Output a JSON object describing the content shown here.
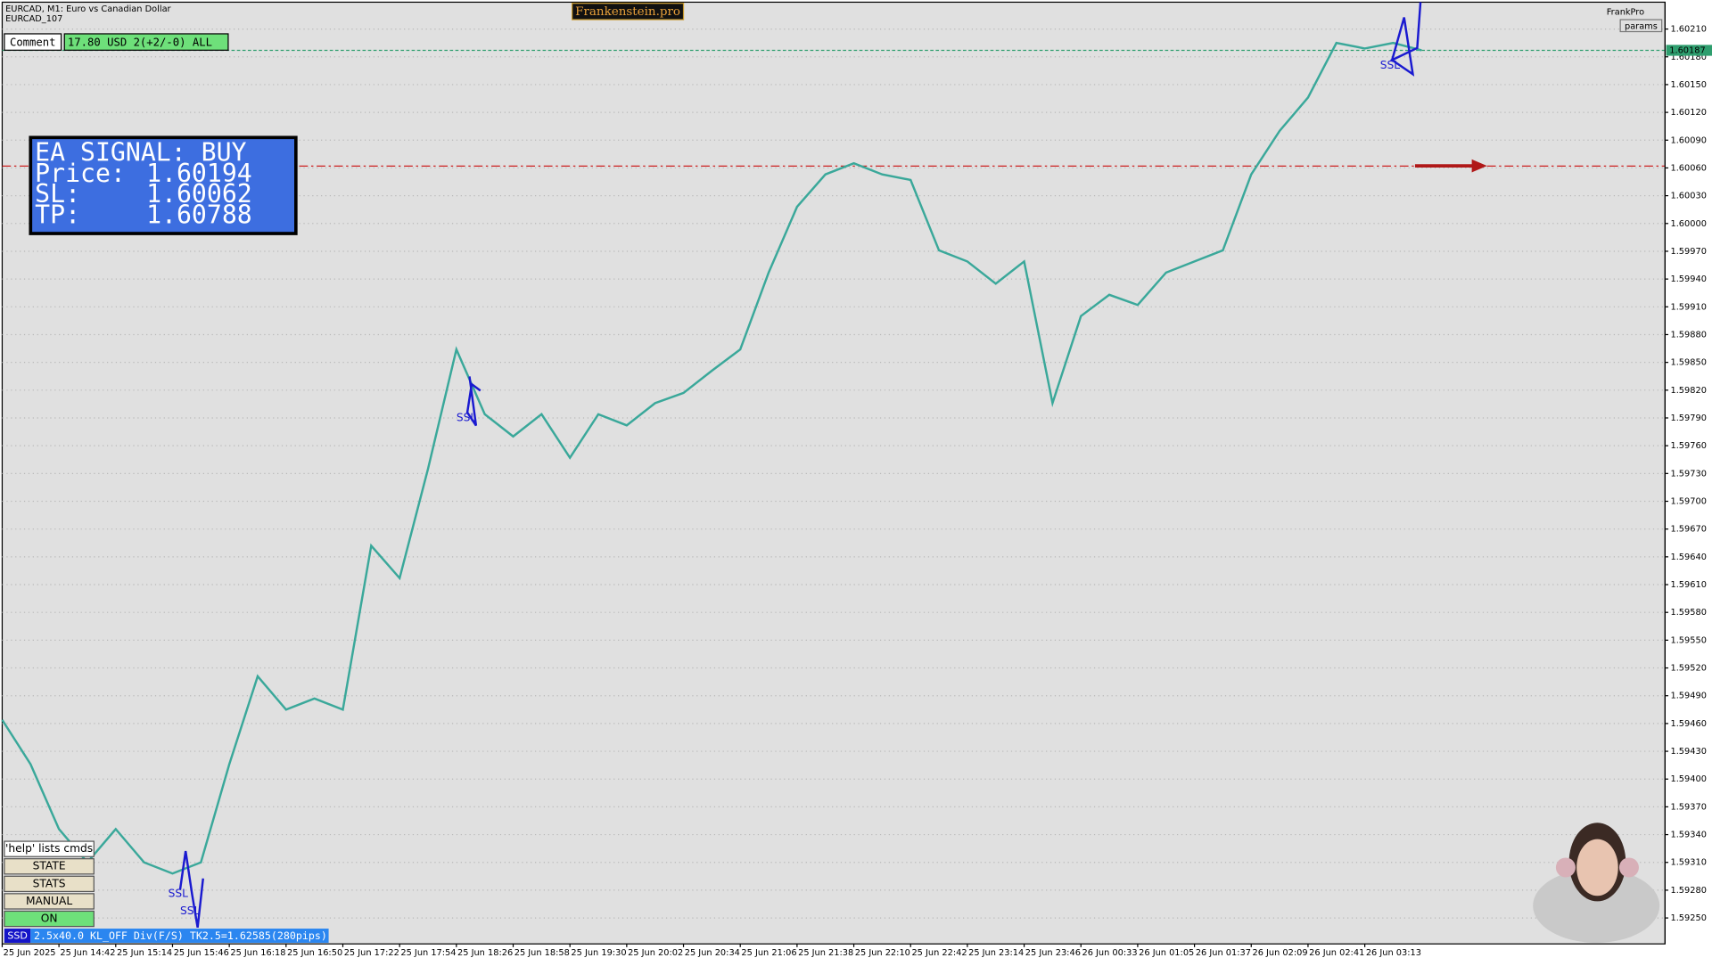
{
  "chart_data": {
    "type": "line",
    "title": "EURCAD, M1:  Euro vs Canadian Dollar",
    "subtitle": "EURCAD_107",
    "categories": [
      "25 Jun 2025",
      null,
      "25 Jun 14:42",
      null,
      "25 Jun 15:14",
      null,
      "25 Jun 15:46",
      null,
      "25 Jun 16:18",
      null,
      "25 Jun 16:50",
      null,
      "25 Jun 17:22",
      null,
      "25 Jun 17:54",
      null,
      "25 Jun 18:26",
      null,
      "25 Jun 18:58",
      null,
      "25 Jun 19:30",
      null,
      "25 Jun 20:02",
      null,
      "25 Jun 20:34",
      null,
      "25 Jun 21:06",
      null,
      "25 Jun 21:38",
      null,
      "25 Jun 22:10",
      null,
      "25 Jun 22:42",
      null,
      "25 Jun 23:14",
      null,
      "25 Jun 23:46",
      null,
      "26 Jun 00:33",
      null,
      "26 Jun 01:05",
      null,
      "26 Jun 01:37",
      null,
      "26 Jun 02:09",
      null,
      "26 Jun 02:41",
      null,
      "26 Jun 03:13",
      null,
      null
    ],
    "values": [
      1.59464,
      1.59416,
      1.59346,
      1.5931,
      1.59346,
      1.5931,
      1.59298,
      1.5931,
      1.59416,
      1.59511,
      1.59475,
      1.59487,
      1.59475,
      1.59652,
      1.59617,
      1.59735,
      1.59864,
      1.59794,
      1.5977,
      1.59794,
      1.59747,
      1.59794,
      1.59782,
      1.59806,
      1.59817,
      1.59841,
      1.59864,
      1.59947,
      1.60018,
      1.60053,
      1.60065,
      1.60053,
      1.60047,
      1.59971,
      1.59959,
      1.59935,
      1.59959,
      1.59806,
      1.599,
      1.59923,
      1.59912,
      1.59947,
      1.59959,
      1.59971,
      1.60053,
      1.601,
      1.60136,
      1.60195,
      1.60189,
      1.60195,
      1.60187
    ],
    "color": "#3aa89a",
    "ylim": [
      1.59222,
      1.60239
    ],
    "yticks": [
      {
        "value": 1.5925,
        "label": "1.59250"
      },
      {
        "value": 1.5928,
        "label": "1.59280"
      },
      {
        "value": 1.5931,
        "label": "1.59310"
      },
      {
        "value": 1.5934,
        "label": "1.59340"
      },
      {
        "value": 1.5937,
        "label": "1.59370"
      },
      {
        "value": 1.594,
        "label": "1.59400"
      },
      {
        "value": 1.5943,
        "label": "1.59430"
      },
      {
        "value": 1.5946,
        "label": "1.59460"
      },
      {
        "value": 1.5949,
        "label": "1.59490"
      },
      {
        "value": 1.5952,
        "label": "1.59520"
      },
      {
        "value": 1.5955,
        "label": "1.59550"
      },
      {
        "value": 1.5958,
        "label": "1.59580"
      },
      {
        "value": 1.5961,
        "label": "1.59610"
      },
      {
        "value": 1.5964,
        "label": "1.59640"
      },
      {
        "value": 1.5967,
        "label": "1.59670"
      },
      {
        "value": 1.597,
        "label": "1.59700"
      },
      {
        "value": 1.5973,
        "label": "1.59730"
      },
      {
        "value": 1.5976,
        "label": "1.59760"
      },
      {
        "value": 1.5979,
        "label": "1.59790"
      },
      {
        "value": 1.5982,
        "label": "1.59820"
      },
      {
        "value": 1.5985,
        "label": "1.59850"
      },
      {
        "value": 1.5988,
        "label": "1.59880"
      },
      {
        "value": 1.5991,
        "label": "1.59910"
      },
      {
        "value": 1.5994,
        "label": "1.59940"
      },
      {
        "value": 1.5997,
        "label": "1.59970"
      },
      {
        "value": 1.6,
        "label": "1.60000"
      },
      {
        "value": 1.6003,
        "label": "1.60030"
      },
      {
        "value": 1.6006,
        "label": "1.60060"
      },
      {
        "value": 1.6009,
        "label": "1.60090"
      },
      {
        "value": 1.6012,
        "label": "1.60120"
      },
      {
        "value": 1.6015,
        "label": "1.60150"
      },
      {
        "value": 1.6018,
        "label": "1.60180"
      },
      {
        "value": 1.6021,
        "label": "1.60210"
      }
    ],
    "grid": true,
    "price_lines": [
      {
        "value": 1.60187,
        "label": "1.60187",
        "color": "#2e9e6e"
      },
      {
        "value": 1.60062,
        "color": "#cc2222"
      }
    ]
  },
  "watermark": "Frankenstein.pro",
  "comment": {
    "label": "Comment",
    "text": "17.80 USD 2(+2/-0) ALL"
  },
  "ea_panel": {
    "title": "EA SIGNAL: BUY",
    "rows": [
      [
        "Price:",
        "1.60194"
      ],
      [
        "SL:",
        "1.60062"
      ],
      [
        "TP:",
        "1.60788"
      ]
    ]
  },
  "annotations": [
    "SSL",
    "SSL",
    "SSL",
    "SSL"
  ],
  "buttons": [
    "'help' lists cmds",
    "STATE",
    "STATS",
    "MANUAL",
    "ON"
  ],
  "status": {
    "tag": "SSD",
    "text": "2.5x40.0 KL_OFF Div(F/S) TK2.5=1.62585(280pips)"
  },
  "top_right": {
    "account": "FrankPro",
    "button": "params"
  }
}
